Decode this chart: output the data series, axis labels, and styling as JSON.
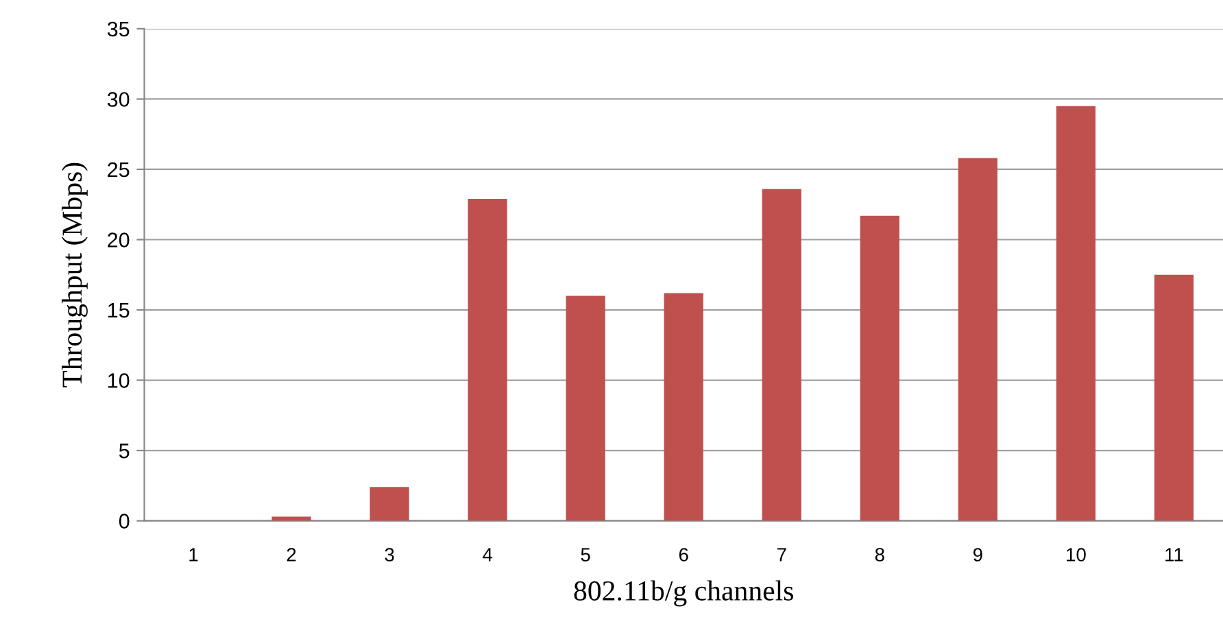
{
  "chart_data": {
    "type": "bar",
    "xlabel": "802.11b/g channels",
    "ylabel": "Throughput (Mbps)",
    "categories": [
      "1",
      "2",
      "3",
      "4",
      "5",
      "6",
      "7",
      "8",
      "9",
      "10",
      "11"
    ],
    "values": [
      0,
      0.3,
      2.4,
      22.9,
      16.0,
      16.2,
      23.6,
      21.7,
      25.8,
      29.5,
      17.5
    ],
    "color": "#c0504d",
    "ylim": [
      0,
      35
    ],
    "yticks": [
      0,
      5,
      10,
      15,
      20,
      25,
      30,
      35
    ],
    "grid": "y",
    "legend": false
  }
}
